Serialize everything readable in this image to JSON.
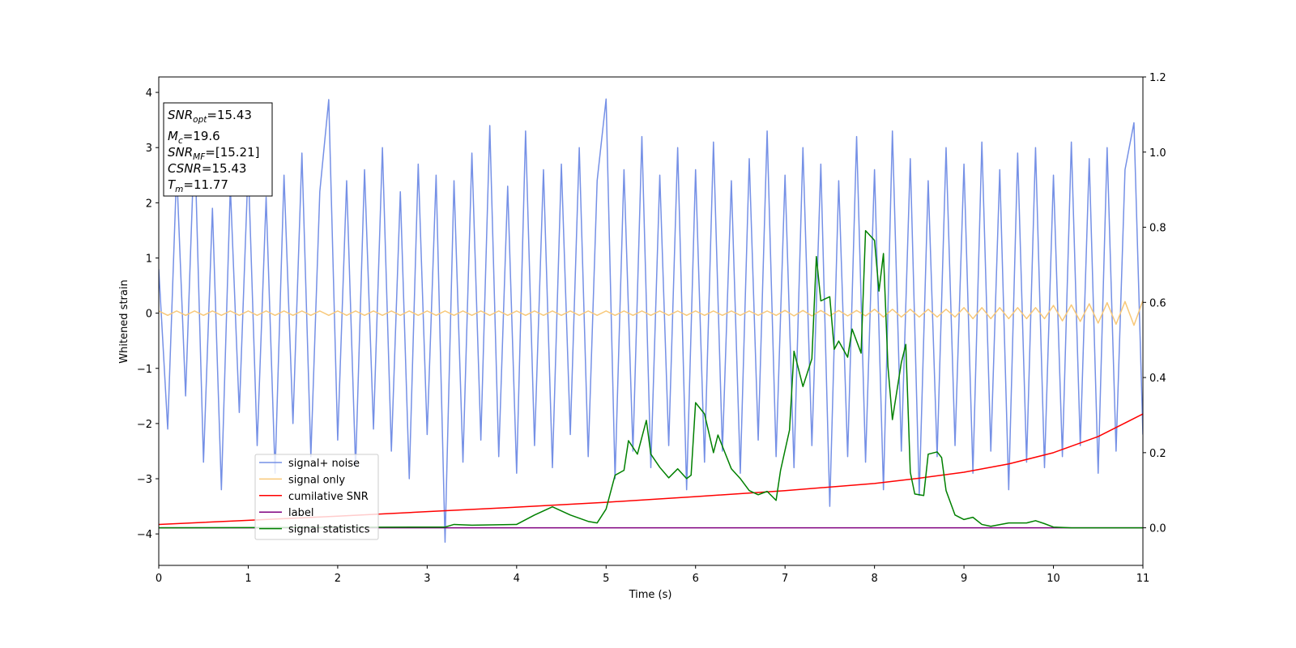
{
  "chart_data": {
    "type": "line",
    "xlabel": "Time (s)",
    "ylabel": "Whitened strain",
    "xlim": [
      0,
      11
    ],
    "xticks": [
      0,
      1,
      2,
      3,
      4,
      5,
      6,
      7,
      8,
      9,
      10,
      11
    ],
    "ylim": [
      -4.57,
      4.28
    ],
    "yticks": [
      {
        "value": -4,
        "label": "−4"
      },
      {
        "value": -3,
        "label": "−3"
      },
      {
        "value": -2,
        "label": "−2"
      },
      {
        "value": -1,
        "label": "−1"
      },
      0,
      1,
      2,
      3,
      4
    ],
    "y2lim": [
      -0.1,
      1.2
    ],
    "y2ticks": [
      {
        "value": 0,
        "label": "0.0"
      },
      {
        "value": 0.2,
        "label": "0.2"
      },
      {
        "value": 0.4,
        "label": "0.4"
      },
      {
        "value": 0.6,
        "label": "0.6"
      },
      {
        "value": 0.8,
        "label": "0.8"
      },
      {
        "value": 1.0,
        "label": "1.0"
      },
      {
        "value": 1.2,
        "label": "1.2"
      }
    ],
    "legend": "lower left",
    "annotations": [
      {
        "name": "SNR",
        "sub": "opt",
        "rest": "=15.43"
      },
      {
        "name": "M",
        "sub": "c",
        "rest": "=19.6"
      },
      {
        "name": "SNR",
        "sub": "MF",
        "rest": "=[15.21]"
      },
      {
        "name": "CSNR",
        "sub": null,
        "rest": "=15.43"
      },
      {
        "name": "T",
        "sub": "m",
        "rest": "=11.77"
      }
    ],
    "x": [
      0,
      0.1,
      0.2,
      0.3,
      0.4,
      0.5,
      0.6,
      0.7,
      0.8,
      0.9,
      1,
      1.1,
      1.2,
      1.3,
      1.4,
      1.5,
      1.6,
      1.7,
      1.8,
      1.9,
      2,
      2.1,
      2.2,
      2.3,
      2.4,
      2.5,
      2.6,
      2.7,
      2.8,
      2.9,
      3,
      3.1,
      3.2,
      3.3,
      3.4,
      3.5,
      3.6,
      3.7,
      3.8,
      3.9,
      4,
      4.1,
      4.2,
      4.3,
      4.4,
      4.5,
      4.6,
      4.7,
      4.8,
      4.9,
      5,
      5.1,
      5.2,
      5.3,
      5.4,
      5.5,
      5.6,
      5.7,
      5.8,
      5.9,
      6,
      6.1,
      6.2,
      6.3,
      6.4,
      6.5,
      6.6,
      6.7,
      6.8,
      6.9,
      7,
      7.1,
      7.2,
      7.3,
      7.4,
      7.5,
      7.6,
      7.7,
      7.8,
      7.9,
      8,
      8.1,
      8.2,
      8.3,
      8.4,
      8.5,
      8.6,
      8.7,
      8.8,
      8.9,
      9,
      9.1,
      9.2,
      9.3,
      9.4,
      9.5,
      9.6,
      9.7,
      9.8,
      9.9,
      10,
      10.1,
      10.2,
      10.3,
      10.4,
      10.5,
      10.6,
      10.7,
      10.8,
      10.9,
      11
    ],
    "series": [
      {
        "name": "signal+ noise",
        "color": "#7590e6",
        "axis": "y",
        "values": [
          0.8,
          -2.1,
          2.6,
          -1.5,
          3.2,
          -2.7,
          1.9,
          -3.2,
          2.3,
          -1.8,
          2.7,
          -2.4,
          2.1,
          -2.9,
          2.5,
          -2.0,
          2.9,
          -2.6,
          2.2,
          3.87,
          -2.3,
          2.4,
          -2.8,
          2.6,
          -2.1,
          3.0,
          -2.5,
          2.2,
          -3.0,
          2.7,
          -2.2,
          2.5,
          -4.15,
          2.4,
          -2.7,
          2.9,
          -2.3,
          3.4,
          -2.6,
          2.3,
          -2.9,
          3.3,
          -2.4,
          2.6,
          -2.8,
          2.7,
          -2.2,
          3.0,
          -2.6,
          2.4,
          3.88,
          -3.0,
          2.6,
          -2.5,
          3.2,
          -2.8,
          2.5,
          -2.4,
          3.0,
          -3.2,
          2.6,
          -2.7,
          3.1,
          -2.5,
          2.4,
          -2.9,
          2.8,
          -2.3,
          3.3,
          -2.6,
          2.5,
          -2.8,
          3.0,
          -2.4,
          2.7,
          -3.5,
          2.4,
          -2.6,
          3.2,
          -2.7,
          2.6,
          -3.2,
          3.3,
          -2.5,
          2.8,
          -3.3,
          2.4,
          -2.6,
          3.0,
          -2.4,
          2.7,
          -2.9,
          3.1,
          -2.5,
          2.6,
          -3.2,
          2.9,
          -2.7,
          3.0,
          -2.8,
          2.5,
          -2.6,
          3.1,
          -2.4,
          2.8,
          -2.9,
          3.0,
          -2.5,
          2.6,
          3.45,
          -2.2
        ]
      },
      {
        "name": "signal only",
        "color": "#f8c879",
        "axis": "y",
        "values": [
          0.04,
          -0.04,
          0.04,
          -0.04,
          0.04,
          -0.04,
          0.04,
          -0.04,
          0.04,
          -0.04,
          0.04,
          -0.04,
          0.04,
          -0.04,
          0.04,
          -0.04,
          0.04,
          -0.04,
          0.04,
          -0.04,
          0.04,
          -0.04,
          0.04,
          -0.04,
          0.04,
          -0.04,
          0.04,
          -0.04,
          0.04,
          -0.04,
          0.04,
          -0.04,
          0.04,
          -0.04,
          0.04,
          -0.04,
          0.04,
          -0.04,
          0.04,
          -0.04,
          0.04,
          -0.04,
          0.04,
          -0.04,
          0.04,
          -0.04,
          0.04,
          -0.04,
          0.04,
          -0.04,
          0.04,
          -0.04,
          0.04,
          -0.04,
          0.04,
          -0.04,
          0.04,
          -0.04,
          0.04,
          -0.04,
          0.04,
          -0.04,
          0.04,
          -0.04,
          0.04,
          -0.04,
          0.04,
          -0.04,
          0.04,
          -0.04,
          0.05,
          -0.05,
          0.05,
          -0.05,
          0.05,
          -0.05,
          0.05,
          -0.05,
          0.05,
          -0.05,
          0.07,
          -0.07,
          0.07,
          -0.07,
          0.07,
          -0.07,
          0.07,
          -0.07,
          0.07,
          -0.07,
          0.1,
          -0.1,
          0.1,
          -0.1,
          0.1,
          -0.1,
          0.1,
          -0.1,
          0.1,
          -0.1,
          0.14,
          -0.14,
          0.15,
          -0.15,
          0.17,
          -0.18,
          0.19,
          -0.2,
          0.21,
          -0.22,
          0.23
        ]
      },
      {
        "name": "cumilative SNR",
        "color": "#ff0000",
        "axis": "y2",
        "x": [
          0,
          1,
          2,
          3,
          4,
          5,
          6,
          7,
          8,
          8.5,
          9,
          9.5,
          10,
          10.5,
          11
        ],
        "values": [
          0.009,
          0.02,
          0.031,
          0.043,
          0.055,
          0.068,
          0.083,
          0.099,
          0.118,
          0.132,
          0.148,
          0.17,
          0.2,
          0.243,
          0.303
        ]
      },
      {
        "name": "label",
        "color": "#800080",
        "axis": "y2",
        "x": [
          0,
          11
        ],
        "values": [
          0,
          0
        ]
      },
      {
        "name": "signal statistics",
        "color": "#008000",
        "axis": "y2",
        "x": [
          0,
          3.2,
          3.3,
          3.5,
          4.0,
          4.2,
          4.4,
          4.6,
          4.8,
          4.9,
          5.0,
          5.1,
          5.2,
          5.25,
          5.35,
          5.45,
          5.5,
          5.6,
          5.7,
          5.8,
          5.9,
          5.95,
          6.0,
          6.1,
          6.2,
          6.25,
          6.4,
          6.5,
          6.6,
          6.7,
          6.8,
          6.9,
          6.95,
          7.05,
          7.1,
          7.2,
          7.3,
          7.35,
          7.4,
          7.5,
          7.55,
          7.6,
          7.7,
          7.75,
          7.85,
          7.9,
          8.0,
          8.05,
          8.1,
          8.15,
          8.2,
          8.3,
          8.35,
          8.4,
          8.45,
          8.55,
          8.6,
          8.7,
          8.75,
          8.8,
          8.9,
          9.0,
          9.1,
          9.2,
          9.3,
          9.5,
          9.7,
          9.8,
          9.9,
          10.0,
          10.2,
          11
        ],
        "values": [
          0,
          0.002,
          0.009,
          0.007,
          0.009,
          0.034,
          0.056,
          0.034,
          0.017,
          0.013,
          0.05,
          0.14,
          0.153,
          0.232,
          0.196,
          0.286,
          0.196,
          0.161,
          0.133,
          0.157,
          0.131,
          0.14,
          0.333,
          0.303,
          0.2,
          0.247,
          0.157,
          0.131,
          0.099,
          0.088,
          0.097,
          0.073,
          0.153,
          0.26,
          0.47,
          0.376,
          0.45,
          0.722,
          0.604,
          0.615,
          0.475,
          0.497,
          0.454,
          0.529,
          0.465,
          0.791,
          0.765,
          0.63,
          0.73,
          0.43,
          0.288,
          0.44,
          0.488,
          0.148,
          0.09,
          0.086,
          0.196,
          0.202,
          0.187,
          0.099,
          0.034,
          0.022,
          0.028,
          0.009,
          0.004,
          0.013,
          0.013,
          0.019,
          0.011,
          0.002,
          0,
          0
        ]
      }
    ]
  }
}
